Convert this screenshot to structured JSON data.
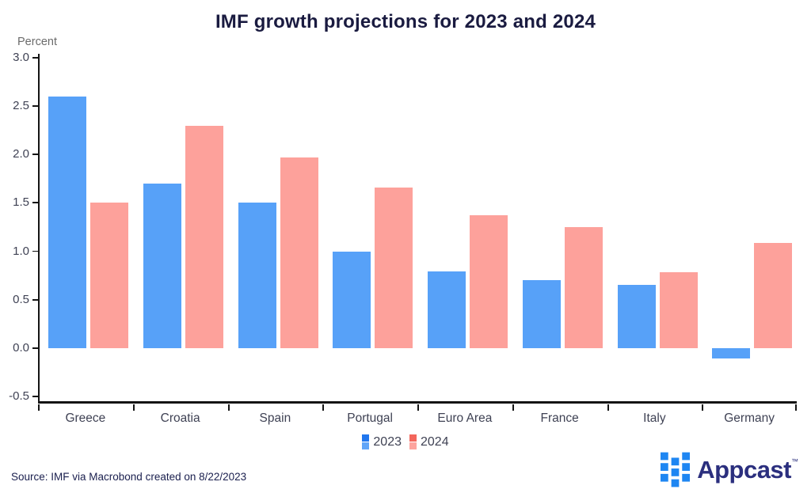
{
  "title": "IMF growth projections for 2023 and 2024",
  "y_axis_unit": "Percent",
  "source_note": "Source: IMF via Macrobond created on 8/22/2023",
  "brand": {
    "name": "Appcast",
    "tm": "™",
    "mark_color": "#1e86f2",
    "word_color": "#2b2f7e"
  },
  "legend": {
    "items": [
      {
        "label": "2023",
        "marker_top_color": "#2076ee",
        "marker_bottom_color": "#60a5f8"
      },
      {
        "label": "2024",
        "marker_top_color": "#f3665c",
        "marker_bottom_color": "#fda49e"
      }
    ]
  },
  "colors": {
    "title_text": "#1a1b40",
    "axis_line": "#141414",
    "tick_text": "#3f4254",
    "unit_text": "#6b6b6b",
    "source_text": "#1a1f4e",
    "bar_2023": "#57a1f8",
    "bar_2024": "#fda19b"
  },
  "chart_data": {
    "type": "bar",
    "title": "IMF growth projections for 2023 and 2024",
    "ylabel": "Percent",
    "xlabel": "",
    "categories": [
      "Greece",
      "Croatia",
      "Spain",
      "Portugal",
      "Euro Area",
      "France",
      "Italy",
      "Germany"
    ],
    "series": [
      {
        "name": "2023",
        "color": "#57a1f8",
        "values": [
          2.6,
          1.7,
          1.5,
          1.0,
          0.79,
          0.7,
          0.65,
          -0.11
        ]
      },
      {
        "name": "2024",
        "color": "#fda19b",
        "values": [
          1.5,
          2.3,
          1.97,
          1.66,
          1.37,
          1.25,
          0.78,
          1.09
        ]
      }
    ],
    "ylim": [
      -0.5,
      3.0
    ],
    "yticks": [
      3.0,
      2.5,
      2.0,
      1.5,
      1.0,
      0.5,
      0.0,
      -0.5
    ],
    "ytick_labels": [
      "3.0",
      "2.5",
      "2.0",
      "1.5",
      "1.0",
      "0.5",
      "0.0",
      "-0.5"
    ],
    "grid": false,
    "legend_position": "bottom-center"
  }
}
